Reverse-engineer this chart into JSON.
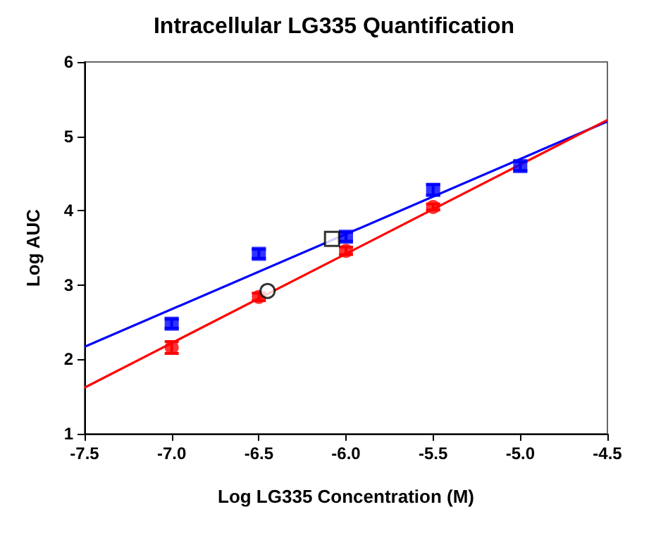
{
  "chart_data": {
    "type": "scatter",
    "title": "Intracellular LG335 Quantification",
    "xlabel": "Log LG335 Concentration (M)",
    "ylabel": "Log AUC",
    "xlim": [
      -7.5,
      -4.5
    ],
    "ylim": [
      1,
      6
    ],
    "xticks": [
      {
        "value": -7.5,
        "label": "-7.5"
      },
      {
        "value": -7,
        "label": "-7.0"
      },
      {
        "value": -6.5,
        "label": "-6.5"
      },
      {
        "value": -6,
        "label": "-6.0"
      },
      {
        "value": -5.5,
        "label": "-5.5"
      },
      {
        "value": -5,
        "label": "-5.0"
      },
      {
        "value": -4.5,
        "label": "-4.5"
      }
    ],
    "yticks": [
      1,
      2,
      3,
      4,
      5,
      6
    ],
    "grid": false,
    "series": [
      {
        "type": "line",
        "color": "#0000ff",
        "x": [
          -7.5,
          -4.5
        ],
        "values": [
          2.17,
          5.2
        ],
        "marker": "none"
      },
      {
        "type": "line",
        "color": "#ff0000",
        "x": [
          -7.5,
          -4.5
        ],
        "values": [
          1.62,
          5.22
        ],
        "marker": "none"
      },
      {
        "color": "#0000ff",
        "marker": "square",
        "x": [
          -7,
          -6.5,
          -6,
          -5.5,
          -5
        ],
        "values": [
          2.48,
          3.42,
          3.65,
          4.28,
          4.6
        ],
        "errors": [
          0.06,
          0.06,
          0.06,
          0.07,
          0.06
        ]
      },
      {
        "color": "#ff0000",
        "marker": "circle",
        "x": [
          -7,
          -6.5,
          -6,
          -5.5
        ],
        "values": [
          2.16,
          2.84,
          3.46,
          4.05
        ],
        "errors": [
          0.08,
          0.05,
          0.05,
          0.04
        ]
      },
      {
        "color": "#000000",
        "marker": "square",
        "x": [
          -6.08
        ],
        "values": [
          3.62
        ]
      },
      {
        "color": "#000000",
        "marker": "circle",
        "x": [
          -6.45
        ],
        "values": [
          2.92
        ]
      }
    ]
  }
}
